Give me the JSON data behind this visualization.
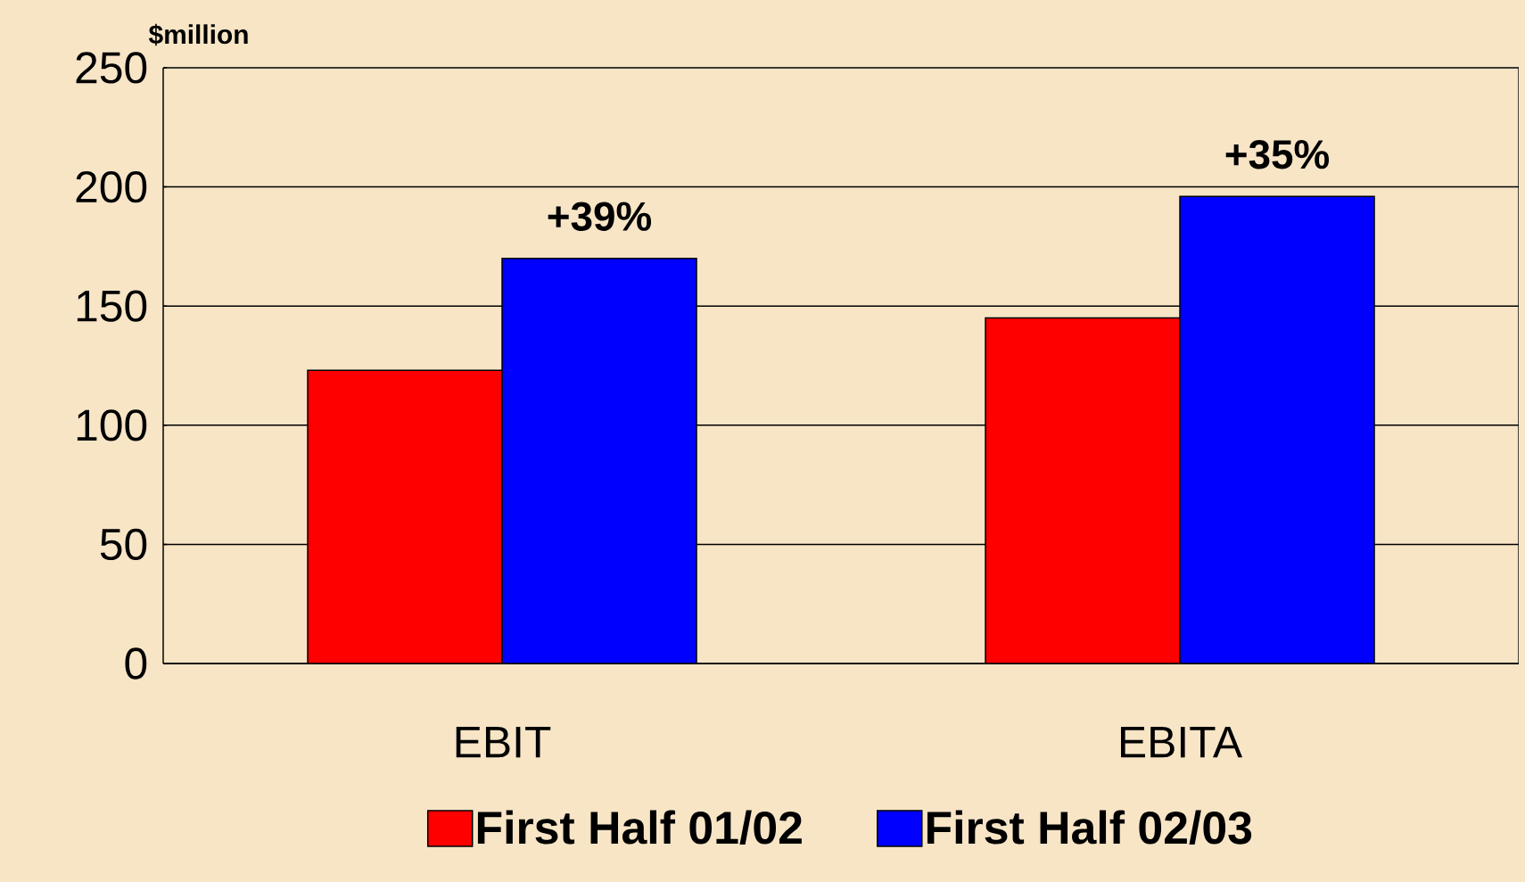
{
  "chart_data": {
    "type": "bar",
    "ylabel": "$million",
    "categories": [
      "EBIT",
      "EBITA"
    ],
    "series": [
      {
        "name": "First Half 01/02",
        "color": "#ff0000",
        "values": [
          123,
          145
        ]
      },
      {
        "name": "First Half 02/03",
        "color": "#0000ff",
        "values": [
          170,
          196
        ]
      }
    ],
    "ylim": [
      0,
      250
    ],
    "yticks": [
      0,
      50,
      100,
      150,
      200,
      250
    ],
    "grid": "y",
    "legend": "bottom",
    "annotations": [
      {
        "text": "+39%",
        "x": "EBIT",
        "y": 170
      },
      {
        "text": "+35%",
        "x": "EBITA",
        "y": 196
      }
    ]
  }
}
